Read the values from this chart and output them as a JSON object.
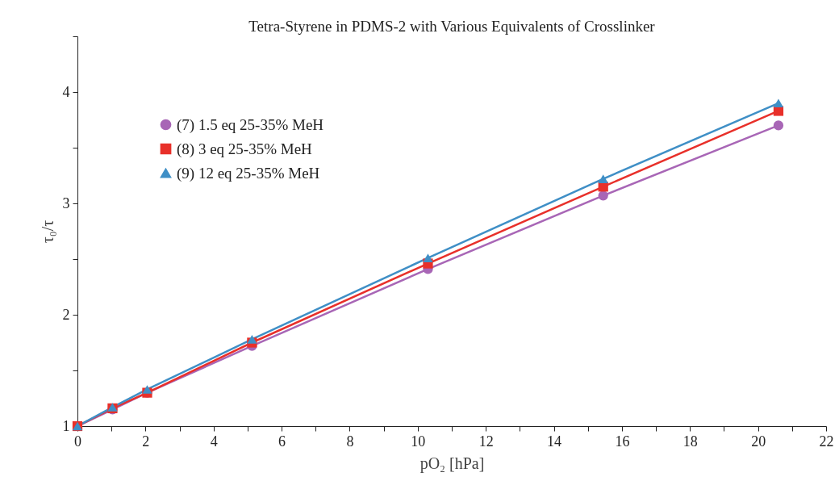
{
  "chart_data": {
    "type": "line",
    "title": "Tetra-Styrene in PDMS-2 with Various Equivalents of Crosslinker",
    "xlabel": "pO₂ [hPa]",
    "ylabel": "τ₀/τ",
    "x": [
      0,
      1.03,
      2.05,
      5.13,
      10.3,
      15.45,
      20.6
    ],
    "series": [
      {
        "name": "(7) 1.5 eq 25-35% MeH",
        "color": "#a866b6",
        "marker": "circle",
        "values": [
          1,
          1.15,
          1.3,
          1.72,
          2.41,
          3.07,
          3.7
        ]
      },
      {
        "name": "(8) 3 eq 25-35% MeH",
        "color": "#e8302a",
        "marker": "square",
        "values": [
          1,
          1.16,
          1.3,
          1.75,
          2.46,
          3.15,
          3.83
        ]
      },
      {
        "name": "(9) 12 eq 25-35% MeH",
        "color": "#3f8fc6",
        "marker": "triangle",
        "values": [
          1,
          1.17,
          1.33,
          1.78,
          2.51,
          3.22,
          3.9
        ]
      }
    ],
    "xlim": [
      0,
      22
    ],
    "xticks": [
      0,
      {
        "value": 1,
        "label": null
      },
      2,
      {
        "value": 3,
        "label": null
      },
      4,
      {
        "value": 5,
        "label": null
      },
      6,
      {
        "value": 7,
        "label": null
      },
      8,
      {
        "value": 9,
        "label": null
      },
      10,
      {
        "value": 11,
        "label": null
      },
      12,
      {
        "value": 13,
        "label": null
      },
      14,
      {
        "value": 15,
        "label": null
      },
      16,
      {
        "value": 17,
        "label": null
      },
      18,
      {
        "value": 19,
        "label": null
      },
      20,
      {
        "value": 21,
        "label": null
      },
      22
    ],
    "ylim": [
      1,
      4.5
    ],
    "yticks": [
      1,
      {
        "value": 1.5,
        "label": null
      },
      2,
      {
        "value": 2.5,
        "label": null
      },
      3,
      {
        "value": 3.5,
        "label": null
      },
      4,
      {
        "value": 4.5,
        "label": null
      }
    ],
    "grid": false,
    "legend": "top left",
    "line_style": "solid"
  }
}
